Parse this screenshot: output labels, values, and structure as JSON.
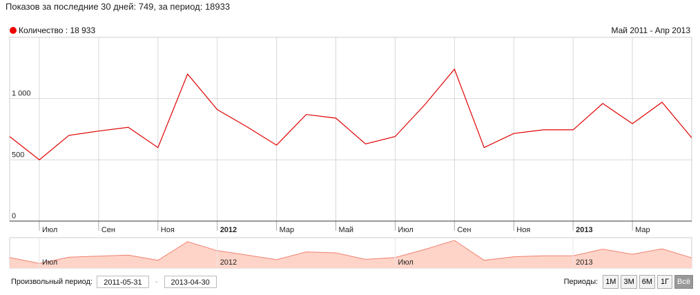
{
  "header": {
    "stats_text": "Показов за последние 30 дней: 749, за период: 18933"
  },
  "legend": {
    "series_label": "Количество : 18 933",
    "series_color": "#e00000"
  },
  "date_range_label": "Май 2011 - Апр 2013",
  "chart_data": {
    "type": "line",
    "series": [
      {
        "name": "Количество",
        "color": "#e00000",
        "values": [
          690,
          500,
          700,
          735,
          765,
          600,
          1200,
          910,
          770,
          620,
          870,
          840,
          630,
          690,
          950,
          1240,
          600,
          715,
          745,
          745,
          960,
          795,
          970,
          680
        ]
      }
    ],
    "ylim": [
      0,
      1500
    ],
    "y_ticks": [
      {
        "value": 0,
        "label": "0"
      },
      {
        "value": 500,
        "label": "500"
      },
      {
        "value": 1000,
        "label": "1 000"
      }
    ],
    "x_ticks": [
      {
        "label": "Июл",
        "bold": false
      },
      {
        "label": "Сен",
        "bold": false
      },
      {
        "label": "Ноя",
        "bold": false
      },
      {
        "label": "2012",
        "bold": true
      },
      {
        "label": "Мар",
        "bold": false
      },
      {
        "label": "Май",
        "bold": false
      },
      {
        "label": "Июл",
        "bold": false
      },
      {
        "label": "Сен",
        "bold": false
      },
      {
        "label": "Ноя",
        "bold": false
      },
      {
        "label": "2013",
        "bold": true
      },
      {
        "label": "Мар",
        "bold": false
      }
    ],
    "grid": true
  },
  "navigator": {
    "labels": [
      "Июл",
      "2012",
      "Июл",
      "2013"
    ],
    "fill_color": "#ffd4c8",
    "line_color": "#f08070"
  },
  "footer": {
    "custom_period_label": "Произвольный период:",
    "start_date": "2011-05-31",
    "end_date": "2013-04-30",
    "separator": "-",
    "periods_label": "Периоды:",
    "period_buttons": [
      "1М",
      "3М",
      "6М",
      "1Г",
      "Всё"
    ],
    "active_period": "Всё"
  }
}
